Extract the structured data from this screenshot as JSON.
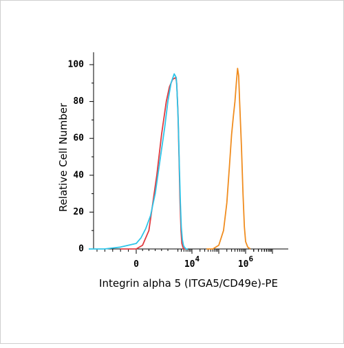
{
  "chart_data": {
    "type": "line",
    "title": "",
    "xlabel": "Integrin alpha 5 (ITGA5/CD49e)-PE",
    "ylabel": "Relative Cell Number",
    "x_scale": "biexponential",
    "x_tick_labels": [
      {
        "base": "0",
        "exp": ""
      },
      {
        "base": "10",
        "exp": "4"
      },
      {
        "base": "10",
        "exp": "6"
      }
    ],
    "y_tick_labels": [
      "0",
      "20",
      "40",
      "60",
      "80",
      "100"
    ],
    "ylim": [
      0,
      100
    ],
    "grid": false,
    "legend": "none",
    "series": [
      {
        "color": "#e0393e",
        "x": [
          -1000,
          0,
          400,
          800,
          1000,
          1300,
          1600,
          1900,
          2100,
          2300,
          2500,
          2700,
          3000,
          3300,
          3600,
          3900,
          4200,
          4600,
          5000,
          6000
        ],
        "values": [
          0,
          0,
          2,
          10,
          22,
          40,
          62,
          80,
          88,
          92,
          93,
          90,
          75,
          50,
          25,
          10,
          3,
          1,
          0,
          0
        ]
      },
      {
        "color": "#2ec4e8",
        "x": [
          -3000,
          -2000,
          -1000,
          -500,
          0,
          300,
          600,
          900,
          1200,
          1500,
          1800,
          2000,
          2200,
          2400,
          2600,
          2800,
          3100,
          3400,
          3700,
          4000,
          4400,
          4800,
          5200,
          6000,
          7000
        ],
        "values": [
          0,
          0,
          1,
          2,
          3,
          6,
          11,
          18,
          30,
          48,
          66,
          80,
          90,
          95,
          93,
          85,
          68,
          45,
          25,
          12,
          5,
          2,
          1,
          0,
          0
        ]
      },
      {
        "color": "#f08c1e",
        "x": [
          35000,
          60000,
          100000,
          150000,
          200000,
          250000,
          300000,
          350000,
          400000,
          450000,
          500000,
          550000,
          600000,
          700000,
          800000,
          900000,
          1000000,
          1200000,
          1500000
        ],
        "values": [
          0,
          0,
          2,
          10,
          25,
          45,
          62,
          72,
          80,
          90,
          98,
          94,
          80,
          55,
          30,
          12,
          4,
          1,
          0
        ]
      }
    ]
  }
}
